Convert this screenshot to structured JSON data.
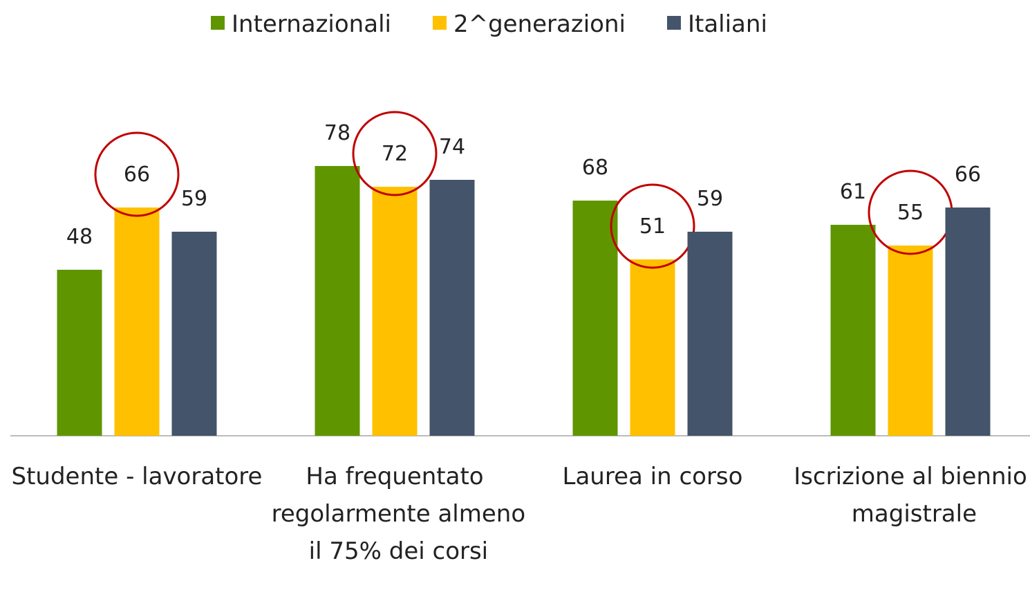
{
  "chart_data": {
    "type": "bar",
    "categories": [
      "Studente - lavoratore",
      "Ha frequentato regolarmente almeno il 75% dei corsi",
      "Laurea in corso",
      "Iscrizione al biennio magistrale"
    ],
    "series": [
      {
        "name": "Internazionali",
        "color": "#5f9600",
        "values": [
          48,
          78,
          68,
          61
        ]
      },
      {
        "name": "2^generazioni",
        "color": "#ffc000",
        "values": [
          66,
          72,
          51,
          55
        ]
      },
      {
        "name": "Italiani",
        "color": "#44546a",
        "values": [
          59,
          74,
          59,
          66
        ]
      }
    ],
    "ylim": [
      0,
      100
    ],
    "legend": "top"
  }
}
